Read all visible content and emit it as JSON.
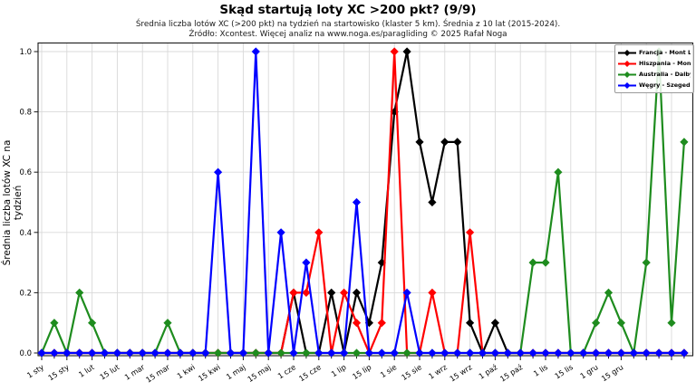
{
  "title": "Skąd startują loty XC >200 pkt? (9/9)",
  "subtitle1": "Średnia liczba lotów XC (>200 pkt) na tydzień na startowisko (klaster 5 km). Średnia z 10 lat (2015-2024).",
  "subtitle2": "Źródło: Xcontest. Więcej analiz na www.noga.es/paragliding © 2025 Rafał Noga",
  "ylabel": "Średnia liczba lotów XC na tydzień",
  "colors": {
    "background": "#ffffff",
    "grid": "#d9d9d9",
    "axis": "#1a1a1a",
    "francja": "#000000",
    "hiszpania": "#ff0000",
    "australia": "#1e8c1e",
    "wegry": "#0000ff"
  },
  "chart_data": {
    "type": "line",
    "x_unit": "week_of_year",
    "weeks": 52,
    "x_tick_labels": [
      "1 sty",
      "15 sty",
      "1 lut",
      "15 lut",
      "1 mar",
      "15 mar",
      "1 kwi",
      "15 kwi",
      "1 maj",
      "15 maj",
      "1 cze",
      "15 cze",
      "1 lip",
      "15 lip",
      "1 sie",
      "15 sie",
      "1 wrz",
      "15 wrz",
      "1 paź",
      "15 paź",
      "1 lis",
      "15 lis",
      "1 gru",
      "15 gru"
    ],
    "x_tick_label_weeks": [
      1,
      3,
      5,
      7,
      9,
      11,
      13,
      15,
      17,
      19,
      21,
      23,
      25,
      27,
      29,
      31,
      33,
      35,
      37,
      39,
      41,
      43,
      45,
      47
    ],
    "y_ticks": [
      0.0,
      0.2,
      0.4,
      0.6,
      0.8,
      1.0
    ],
    "ylim": [
      0,
      1.0
    ],
    "grid": true,
    "legend_position": "top-right",
    "marker": "diamond",
    "series": [
      {
        "name": "Francja - Mont Lachat",
        "color": "#000000",
        "values": [
          0,
          0,
          0,
          0,
          0,
          0,
          0,
          0,
          0,
          0,
          0,
          0,
          0,
          0,
          0,
          0,
          0,
          0,
          0,
          0,
          0.2,
          0,
          0,
          0.2,
          0,
          0.2,
          0.1,
          0.3,
          0.8,
          1.0,
          0.7,
          0.5,
          0.7,
          0.7,
          0.1,
          0,
          0.1,
          0,
          0,
          0,
          0,
          0,
          0,
          0,
          0,
          0,
          0,
          0,
          0,
          0,
          0,
          0
        ]
      },
      {
        "name": "Hiszpania - Montanchez",
        "color": "#ff0000",
        "values": [
          0,
          0,
          0,
          0,
          0,
          0,
          0,
          0,
          0,
          0,
          0,
          0,
          0,
          0,
          0,
          0,
          0,
          0,
          0,
          0,
          0.2,
          0.2,
          0.4,
          0,
          0.2,
          0.1,
          0,
          0.1,
          1.0,
          0,
          0,
          0.2,
          0,
          0,
          0.4,
          0,
          0,
          0,
          0,
          0,
          0,
          0,
          0,
          0,
          0,
          0,
          0,
          0,
          0,
          0,
          0,
          0
        ]
      },
      {
        "name": "Australia - Dalby Coo...",
        "color": "#1e8c1e",
        "values": [
          0,
          0.1,
          0,
          0.2,
          0.1,
          0,
          0,
          0,
          0,
          0,
          0.1,
          0,
          0,
          0,
          0,
          0,
          0,
          0,
          0,
          0,
          0,
          0,
          0,
          0,
          0,
          0,
          0,
          0,
          0,
          0,
          0,
          0,
          0,
          0,
          0,
          0,
          0,
          0,
          0,
          0.3,
          0.3,
          0.6,
          0,
          0,
          0.1,
          0.2,
          0.1,
          0,
          0.3,
          1.0,
          0.1,
          0.7
        ]
      },
      {
        "name": "Węgry - Szeged",
        "color": "#0000ff",
        "values": [
          0,
          0,
          0,
          0,
          0,
          0,
          0,
          0,
          0,
          0,
          0,
          0,
          0,
          0,
          0.6,
          0,
          0,
          1.0,
          0,
          0.4,
          0,
          0.3,
          0,
          0,
          0,
          0.5,
          0,
          0,
          0,
          0.2,
          0,
          0,
          0,
          0,
          0,
          0,
          0,
          0,
          0,
          0,
          0,
          0,
          0,
          0,
          0,
          0,
          0,
          0,
          0,
          0,
          0,
          0
        ]
      }
    ]
  }
}
